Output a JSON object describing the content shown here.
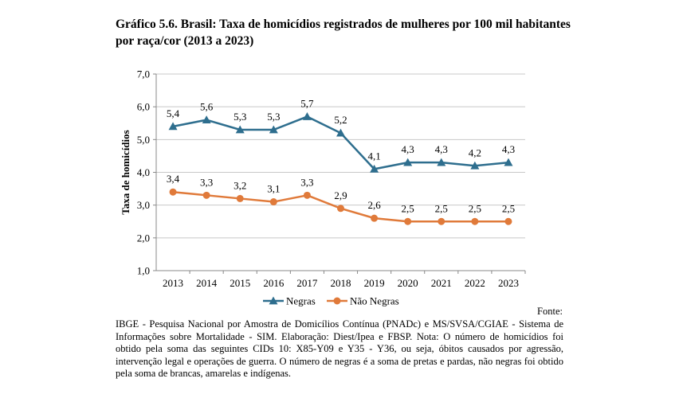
{
  "title": "Gráfico 5.6. Brasil: Taxa de homicídios registrados de mulheres por 100 mil habitantes por raça/cor (2013 a 2023)",
  "source_label": "Fonte:",
  "source_text": "IBGE - Pesquisa Nacional por Amostra de Domicílios Contínua (PNADc) e MS/SVSA/CGIAE - Sistema de Informações sobre Mortalidade - SIM. Elaboração: Diest/Ipea e FBSP. Nota: O número de homicídios foi obtido pela soma das seguintes CIDs 10: X85-Y09 e Y35 - Y36, ou seja, óbitos causados por agressão, intervenção legal e operações de guerra. O número de negras é a soma de pretas e pardas, não negras foi obtido pela soma de brancas, amarelas e indígenas.",
  "chart_data": {
    "type": "line",
    "x": [
      "2013",
      "2014",
      "2015",
      "2016",
      "2017",
      "2018",
      "2019",
      "2020",
      "2021",
      "2022",
      "2023"
    ],
    "ylabel": "Taxa de homicídios",
    "ylim": [
      1.0,
      7.0
    ],
    "yticks": [
      "1,0",
      "2,0",
      "3,0",
      "4,0",
      "5,0",
      "6,0",
      "7,0"
    ],
    "grid": true,
    "legend_position": "bottom",
    "series": [
      {
        "name": "Negras",
        "color": "#2E6E8E",
        "marker": "triangle",
        "values": [
          5.4,
          5.6,
          5.3,
          5.3,
          5.7,
          5.2,
          4.1,
          4.3,
          4.3,
          4.2,
          4.3
        ],
        "labels": [
          "5,4",
          "5,6",
          "5,3",
          "5,3",
          "5,7",
          "5,2",
          "4,1",
          "4,3",
          "4,3",
          "4,2",
          "4,3"
        ]
      },
      {
        "name": "Não Negras",
        "color": "#E07A3A",
        "marker": "circle",
        "values": [
          3.4,
          3.3,
          3.2,
          3.1,
          3.3,
          2.9,
          2.6,
          2.5,
          2.5,
          2.5,
          2.5
        ],
        "labels": [
          "3,4",
          "3,3",
          "3,2",
          "3,1",
          "3,3",
          "2,9",
          "2,6",
          "2,5",
          "2,5",
          "2,5",
          "2,5"
        ]
      }
    ]
  }
}
